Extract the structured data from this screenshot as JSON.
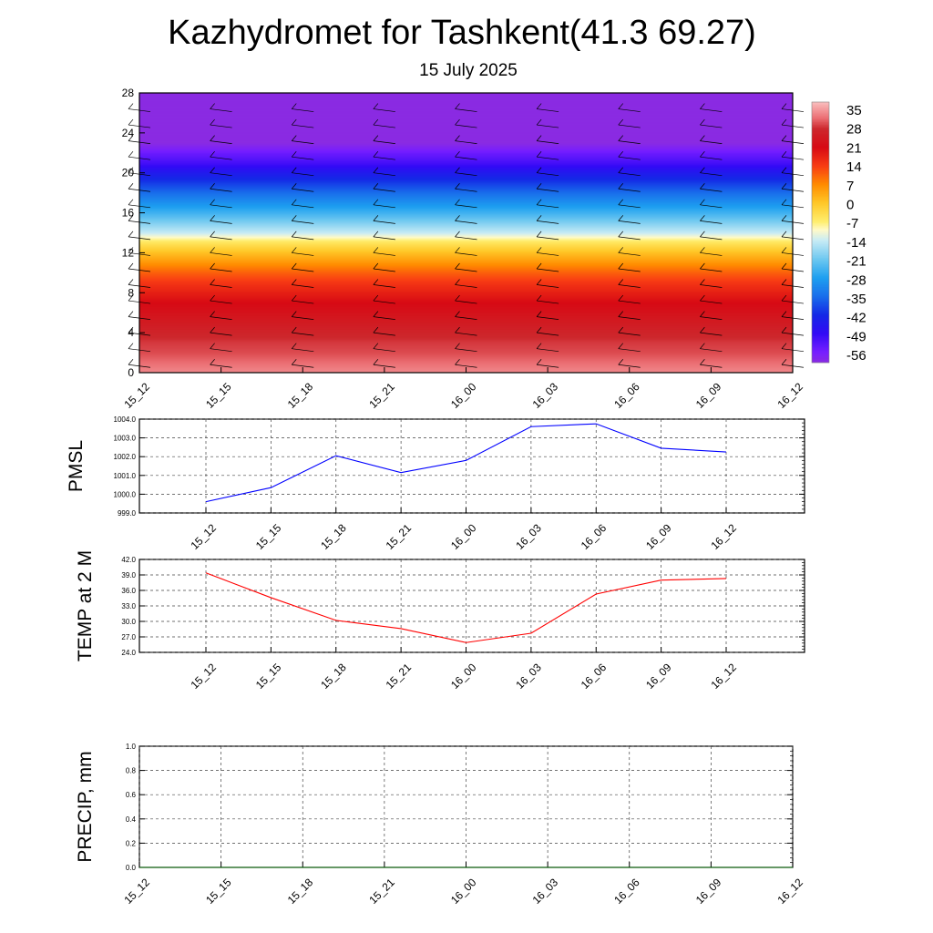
{
  "title": "Kazhydromet for Tashkent(41.3 69.27)",
  "subtitle": "15 July 2025",
  "chart_data": [
    {
      "type": "heatmap",
      "panel": "temperature-height section with wind barbs",
      "x_ticks": [
        "15_12",
        "15_15",
        "15_18",
        "15_21",
        "16_00",
        "16_03",
        "16_06",
        "16_09",
        "16_12"
      ],
      "y_ticks": [
        "0",
        "4",
        "8",
        "12",
        "16",
        "20",
        "24",
        "28"
      ],
      "ylim": [
        0,
        28
      ],
      "colorbar": {
        "labels": [
          "35",
          "28",
          "21",
          "14",
          "7",
          "0",
          "-7",
          "-14",
          "-21",
          "-28",
          "-35",
          "-42",
          "-49",
          "-56"
        ],
        "range": [
          -60,
          38
        ]
      },
      "profile": {
        "heights": [
          0,
          1,
          2,
          3,
          4,
          5,
          6,
          7,
          8,
          9,
          10,
          11,
          12,
          13,
          14,
          16,
          18,
          20,
          21,
          22,
          23,
          25,
          28
        ],
        "temps": [
          34,
          32,
          30,
          29,
          27,
          25,
          23,
          21,
          18,
          15,
          11,
          6,
          1,
          -5,
          -14,
          -25,
          -35,
          -45,
          -51,
          -55,
          -60,
          -60,
          -60
        ]
      }
    },
    {
      "type": "line",
      "ylabel": "PMSL",
      "x_ticks": [
        "15_12",
        "15_15",
        "15_18",
        "15_21",
        "16_00",
        "16_03",
        "16_06",
        "16_09",
        "16_12"
      ],
      "y_ticks": [
        "999.0",
        "1000.0",
        "1001.0",
        "1002.0",
        "1003.0",
        "1004.0"
      ],
      "ylim": [
        999,
        1004
      ],
      "color": "#0000ff",
      "values": [
        999.6,
        1000.35,
        1002.05,
        1001.15,
        1001.8,
        1003.6,
        1003.75,
        1002.45,
        1002.25
      ]
    },
    {
      "type": "line",
      "ylabel": "TEMP at 2 M",
      "x_ticks": [
        "15_12",
        "15_15",
        "15_18",
        "15_21",
        "16_00",
        "16_03",
        "16_06",
        "16_09",
        "16_12"
      ],
      "y_ticks": [
        "24.0",
        "27.0",
        "30.0",
        "33.0",
        "36.0",
        "39.0",
        "42.0"
      ],
      "ylim": [
        24,
        42
      ],
      "color": "#ff0000",
      "values": [
        39.4,
        34.6,
        30.2,
        28.6,
        25.9,
        27.7,
        35.3,
        38.0,
        38.3
      ]
    },
    {
      "type": "line",
      "ylabel": "PRECIP, mm",
      "x_ticks": [
        "15_12",
        "15_15",
        "15_18",
        "15_21",
        "16_00",
        "16_03",
        "16_06",
        "16_09",
        "16_12"
      ],
      "y_ticks": [
        "0.0",
        "0.2",
        "0.4",
        "0.6",
        "0.8",
        "1.0"
      ],
      "ylim": [
        0,
        1
      ],
      "color": "#006400",
      "values": [
        0,
        0,
        0,
        0,
        0,
        0,
        0,
        0,
        0
      ]
    }
  ]
}
